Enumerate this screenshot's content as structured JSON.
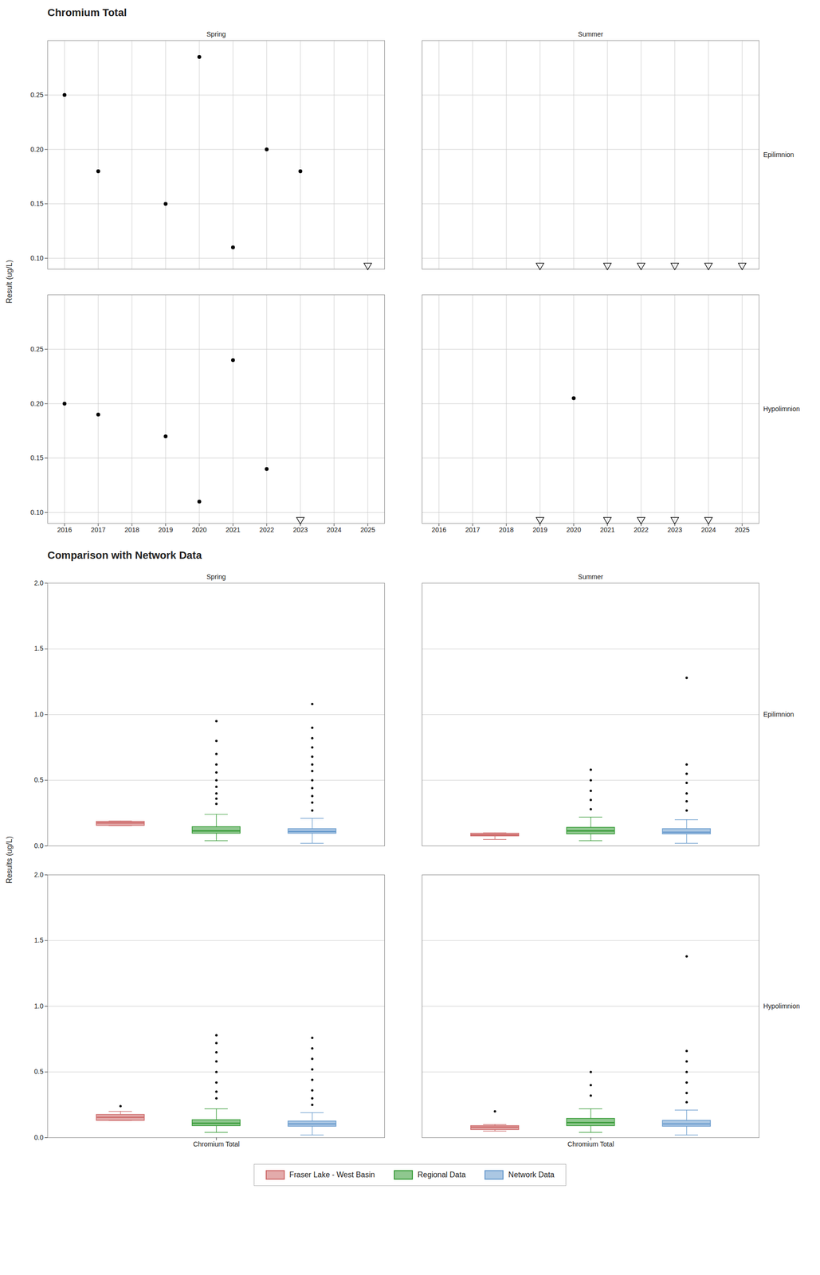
{
  "chart_data": [
    {
      "type": "scatter",
      "title": "Chromium Total",
      "ylabel": "Result (ug/L)",
      "columns": [
        "Spring",
        "Summer"
      ],
      "rows": [
        "Epilimnion",
        "Hypolimnion"
      ],
      "xlim": [
        2015.5,
        2025.5
      ],
      "xticks": [
        2016,
        2017,
        2018,
        2019,
        2020,
        2021,
        2022,
        2023,
        2024,
        2025
      ],
      "ylim": [
        0.09,
        0.3
      ],
      "yticks": [
        {
          "value": 0.1,
          "label": "0.10"
        },
        0.15,
        {
          "value": 0.2,
          "label": "0.20"
        },
        0.25
      ],
      "grid": true,
      "panels": [
        {
          "column": "Spring",
          "row": "Epilimnion",
          "x": [
            2016,
            2017,
            2018,
            2019,
            2020,
            2021,
            2022,
            2023,
            2024,
            2025
          ],
          "values": [
            0.25,
            0.18,
            null,
            0.15,
            0.285,
            0.11,
            0.2,
            0.18,
            null,
            null
          ],
          "censored": [
            false,
            false,
            false,
            false,
            false,
            false,
            false,
            false,
            false,
            true
          ]
        },
        {
          "column": "Summer",
          "row": "Epilimnion",
          "x": [
            2016,
            2017,
            2018,
            2019,
            2020,
            2021,
            2022,
            2023,
            2024,
            2025
          ],
          "values": [
            null,
            null,
            null,
            null,
            null,
            null,
            null,
            null,
            null,
            null
          ],
          "censored": [
            false,
            false,
            false,
            true,
            false,
            true,
            true,
            true,
            true,
            true
          ]
        },
        {
          "column": "Spring",
          "row": "Hypolimnion",
          "x": [
            2016,
            2017,
            2018,
            2019,
            2020,
            2021,
            2022,
            2023,
            2024,
            2025
          ],
          "values": [
            0.2,
            0.19,
            null,
            0.17,
            0.11,
            0.24,
            0.14,
            null,
            null,
            null
          ],
          "censored": [
            false,
            false,
            false,
            false,
            false,
            false,
            false,
            true,
            false,
            false
          ]
        },
        {
          "column": "Summer",
          "row": "Hypolimnion",
          "x": [
            2016,
            2017,
            2018,
            2019,
            2020,
            2021,
            2022,
            2023,
            2024,
            2025
          ],
          "values": [
            null,
            null,
            null,
            null,
            0.205,
            null,
            null,
            null,
            null,
            null
          ],
          "censored": [
            false,
            false,
            false,
            true,
            false,
            true,
            true,
            true,
            true,
            false
          ]
        }
      ]
    },
    {
      "type": "box",
      "title": "Comparison with Network Data",
      "ylabel": "Results (ug/L)",
      "categories": [
        "Chromium Total"
      ],
      "columns": [
        "Spring",
        "Summer"
      ],
      "rows": [
        "Epilimnion",
        "Hypolimnion"
      ],
      "ylim": [
        0.0,
        2.0
      ],
      "yticks": [
        {
          "value": 0,
          "label": "0.0"
        },
        0.5,
        {
          "value": 1,
          "label": "1.0"
        },
        1.5,
        {
          "value": 2,
          "label": "2.0"
        }
      ],
      "grid": "y",
      "legend": "bottom",
      "series": [
        {
          "name": "Fraser Lake - West Basin",
          "color": "#CC6666",
          "panels": [
            {
              "column": "Spring",
              "row": "Epilimnion",
              "q1": 0.155,
              "med": 0.175,
              "q3": 0.185,
              "whislo": 0.155,
              "whishi": 0.19,
              "fliers": []
            },
            {
              "column": "Summer",
              "row": "Epilimnion",
              "q1": 0.075,
              "med": 0.085,
              "q3": 0.095,
              "whislo": 0.05,
              "whishi": 0.1,
              "fliers": []
            },
            {
              "column": "Spring",
              "row": "Hypolimnion",
              "q1": 0.13,
              "med": 0.155,
              "q3": 0.175,
              "whislo": 0.13,
              "whishi": 0.2,
              "fliers": [
                0.24
              ]
            },
            {
              "column": "Summer",
              "row": "Hypolimnion",
              "q1": 0.06,
              "med": 0.08,
              "q3": 0.09,
              "whislo": 0.05,
              "whishi": 0.1,
              "fliers": [
                0.2
              ]
            }
          ]
        },
        {
          "name": "Regional Data",
          "color": "#339933",
          "panels": [
            {
              "column": "Spring",
              "row": "Epilimnion",
              "q1": 0.095,
              "med": 0.115,
              "q3": 0.145,
              "whislo": 0.04,
              "whishi": 0.24,
              "fliers": [
                0.32,
                0.36,
                0.4,
                0.45,
                0.5,
                0.56,
                0.62,
                0.7,
                0.8,
                0.95
              ]
            },
            {
              "column": "Summer",
              "row": "Epilimnion",
              "q1": 0.09,
              "med": 0.115,
              "q3": 0.14,
              "whislo": 0.04,
              "whishi": 0.22,
              "fliers": [
                0.28,
                0.35,
                0.42,
                0.5,
                0.58
              ]
            },
            {
              "column": "Spring",
              "row": "Hypolimnion",
              "q1": 0.09,
              "med": 0.11,
              "q3": 0.135,
              "whislo": 0.04,
              "whishi": 0.22,
              "fliers": [
                0.3,
                0.35,
                0.42,
                0.5,
                0.58,
                0.65,
                0.72,
                0.78
              ]
            },
            {
              "column": "Summer",
              "row": "Hypolimnion",
              "q1": 0.09,
              "med": 0.115,
              "q3": 0.145,
              "whislo": 0.04,
              "whishi": 0.22,
              "fliers": [
                0.32,
                0.4,
                0.5
              ]
            }
          ]
        },
        {
          "name": "Network Data",
          "color": "#6699CC",
          "panels": [
            {
              "column": "Spring",
              "row": "Epilimnion",
              "q1": 0.095,
              "med": 0.11,
              "q3": 0.13,
              "whislo": 0.02,
              "whishi": 0.21,
              "fliers": [
                0.27,
                0.33,
                0.38,
                0.44,
                0.5,
                0.57,
                0.62,
                0.68,
                0.75,
                0.82,
                0.9,
                1.08
              ]
            },
            {
              "column": "Summer",
              "row": "Epilimnion",
              "q1": 0.09,
              "med": 0.105,
              "q3": 0.13,
              "whislo": 0.02,
              "whishi": 0.2,
              "fliers": [
                0.27,
                0.34,
                0.4,
                0.48,
                0.55,
                0.62,
                1.28
              ]
            },
            {
              "column": "Spring",
              "row": "Hypolimnion",
              "q1": 0.085,
              "med": 0.105,
              "q3": 0.125,
              "whislo": 0.02,
              "whishi": 0.19,
              "fliers": [
                0.25,
                0.3,
                0.36,
                0.44,
                0.52,
                0.6,
                0.68,
                0.76
              ]
            },
            {
              "column": "Summer",
              "row": "Hypolimnion",
              "q1": 0.085,
              "med": 0.105,
              "q3": 0.13,
              "whislo": 0.02,
              "whishi": 0.21,
              "fliers": [
                0.27,
                0.34,
                0.42,
                0.5,
                0.58,
                0.66,
                1.38
              ]
            }
          ]
        }
      ]
    }
  ]
}
